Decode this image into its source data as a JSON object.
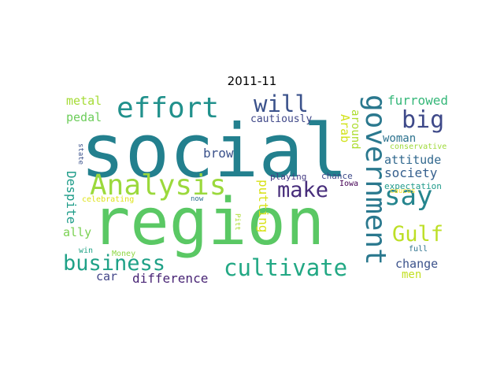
{
  "figure": {
    "title": "2011-11"
  },
  "wordcloud": {
    "words": [
      {
        "text": "social",
        "color": "#23808e"
      },
      {
        "text": "region",
        "color": "#5ac864"
      },
      {
        "text": "effort",
        "color": "#21918c"
      },
      {
        "text": "Analysis",
        "color": "#9bd93c"
      },
      {
        "text": "government",
        "color": "#2a788e"
      },
      {
        "text": "cultivate",
        "color": "#22a884"
      },
      {
        "text": "business",
        "color": "#1fa187"
      },
      {
        "text": "will",
        "color": "#3b528b"
      },
      {
        "text": "big",
        "color": "#3e4989"
      },
      {
        "text": "say",
        "color": "#25858e"
      },
      {
        "text": "make",
        "color": "#472d7b"
      },
      {
        "text": "Gulf",
        "color": "#bddf26"
      },
      {
        "text": "furrowed",
        "color": "#35b779"
      },
      {
        "text": "metal",
        "color": "#a5db36"
      },
      {
        "text": "pedal",
        "color": "#6ccd5a"
      },
      {
        "text": "cautiously",
        "color": "#3f4788"
      },
      {
        "text": "Arab",
        "color": "#d2e21b"
      },
      {
        "text": "around",
        "color": "#addc30"
      },
      {
        "text": "woman",
        "color": "#2c728e"
      },
      {
        "text": "attitude",
        "color": "#31688e"
      },
      {
        "text": "society",
        "color": "#355f8d"
      },
      {
        "text": "brow",
        "color": "#3b528b"
      },
      {
        "text": "Despite",
        "color": "#1e9c89"
      },
      {
        "text": "putting",
        "color": "#d8e219"
      },
      {
        "text": "playing",
        "color": "#443a83"
      },
      {
        "text": "chance",
        "color": "#3e4989"
      },
      {
        "text": "Iowa",
        "color": "#440154"
      },
      {
        "text": "conservative",
        "color": "#9fda3a"
      },
      {
        "text": "state",
        "color": "#3b528b"
      },
      {
        "text": "expectation",
        "color": "#1f9a8a"
      },
      {
        "text": "celebrating",
        "color": "#dde318"
      },
      {
        "text": "now",
        "color": "#2d708e"
      },
      {
        "text": "caucus",
        "color": "#fde725"
      },
      {
        "text": "Pitt",
        "color": "#addc30"
      },
      {
        "text": "ally",
        "color": "#7ad151"
      },
      {
        "text": "Money",
        "color": "#8fd744"
      },
      {
        "text": "full",
        "color": "#2c728e"
      },
      {
        "text": "win",
        "color": "#20a386"
      },
      {
        "text": "car",
        "color": "#414487"
      },
      {
        "text": "difference",
        "color": "#482475"
      },
      {
        "text": "change",
        "color": "#3b528b"
      },
      {
        "text": "men",
        "color": "#c2df23"
      }
    ]
  }
}
